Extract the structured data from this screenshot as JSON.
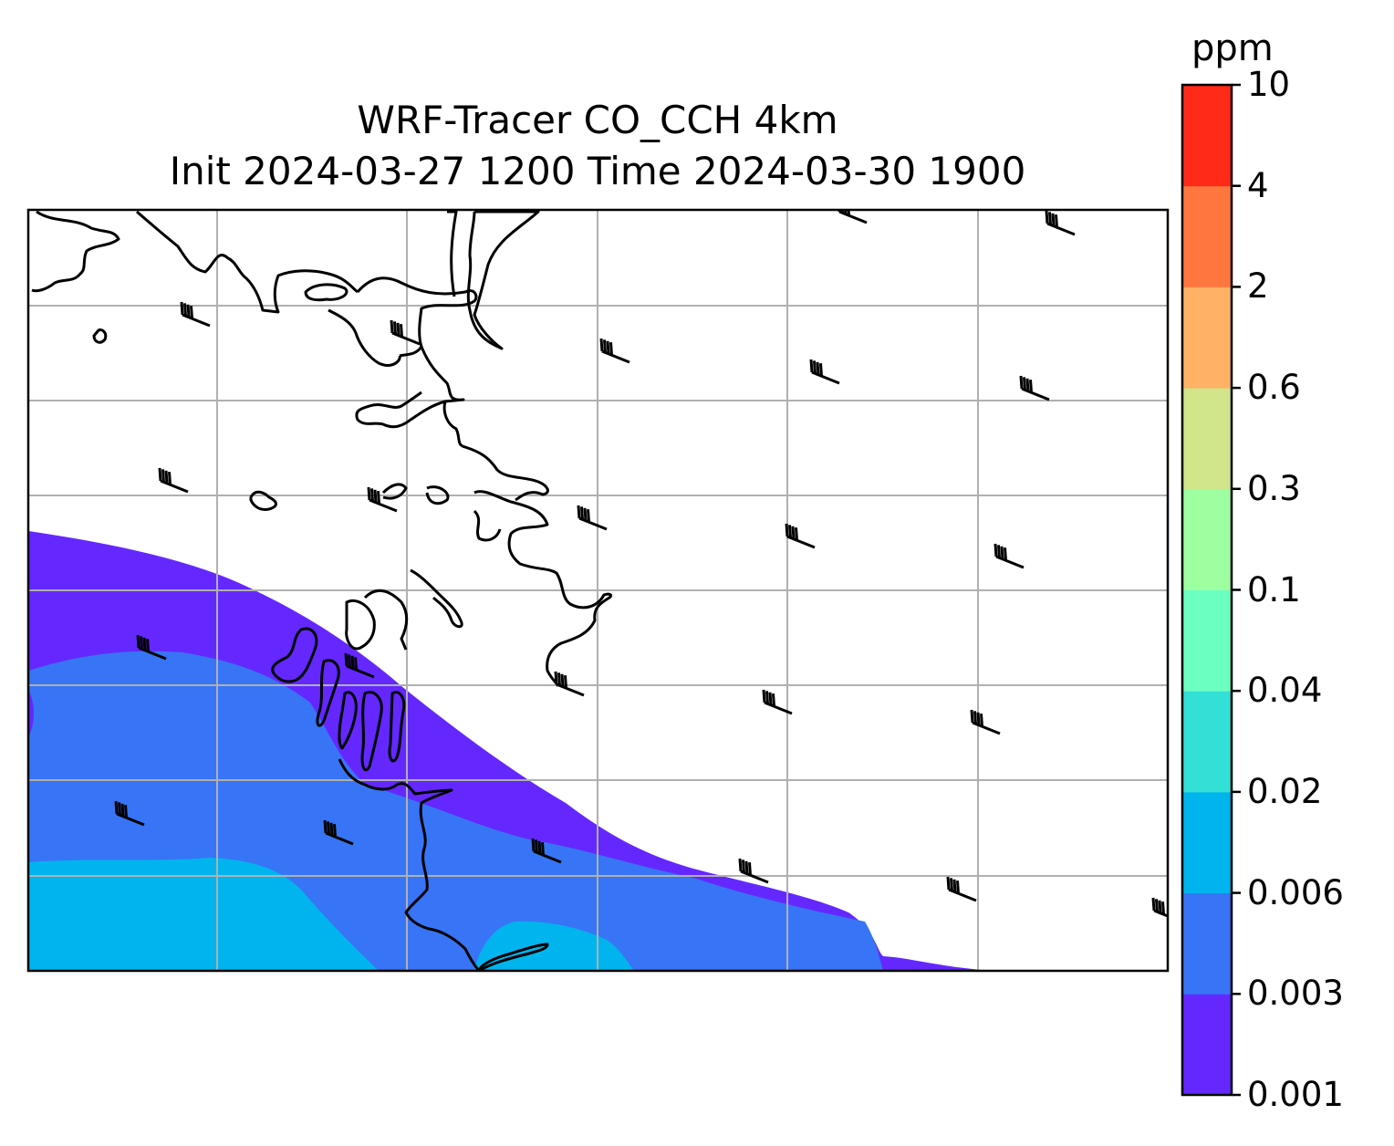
{
  "title": {
    "line1": "WRF-Tracer CO_CCH 4km",
    "line2": "Init 2024-03-27 1200 Time 2024-03-30 1900"
  },
  "colorbar": {
    "unit": "ppm",
    "levels": [
      "0.001",
      "0.003",
      "0.006",
      "0.02",
      "0.04",
      "0.1",
      "0.3",
      "0.6",
      "2",
      "4",
      "10"
    ],
    "colors": [
      "#6428ff",
      "#3775f6",
      "#00b4ee",
      "#32e0d6",
      "#6bffc2",
      "#9dffa0",
      "#d1e58a",
      "#ffb265",
      "#ff773f",
      "#ff2a18"
    ]
  },
  "map": {
    "plume_levels": [
      "0.001",
      "0.003",
      "0.006"
    ],
    "wind_barb_count": 25
  }
}
